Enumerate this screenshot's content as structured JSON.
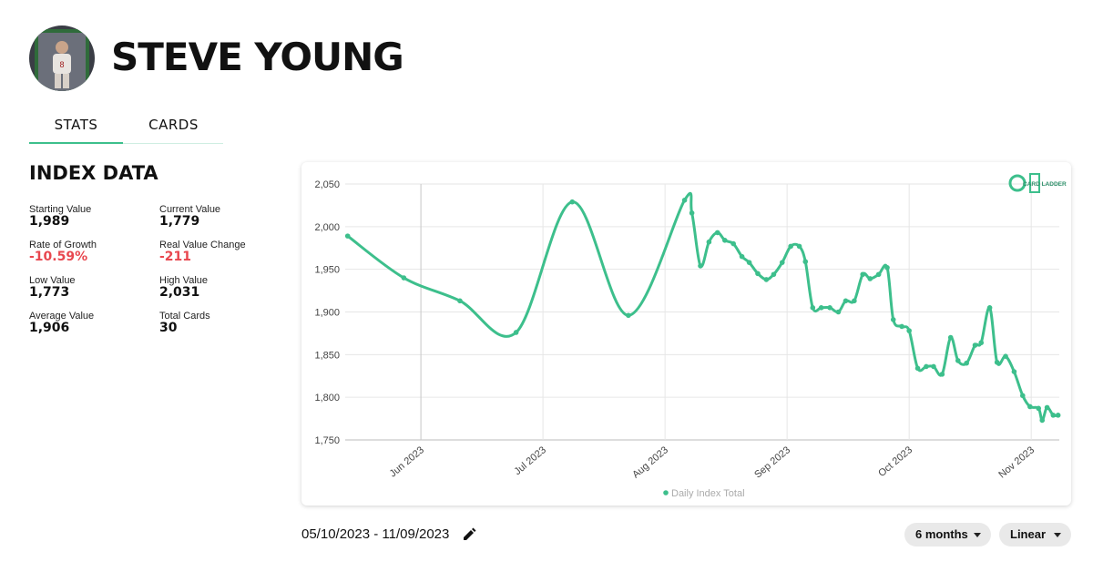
{
  "header": {
    "title": "STEVE YOUNG"
  },
  "tabs": [
    "STATS",
    "CARDS"
  ],
  "index_data": {
    "title": "INDEX DATA",
    "stats": [
      {
        "label": "Starting Value",
        "value": "1,989"
      },
      {
        "label": "Current Value",
        "value": "1,779"
      },
      {
        "label": "Rate of Growth",
        "value": "-10.59%"
      },
      {
        "label": "Real Value Change",
        "value": "-211"
      },
      {
        "label": "Low Value",
        "value": "1,773"
      },
      {
        "label": "High Value",
        "value": "2,031"
      },
      {
        "label": "Average Value",
        "value": "1,906"
      },
      {
        "label": "Total Cards",
        "value": "30"
      }
    ]
  },
  "chart_data": {
    "type": "line",
    "watermark": "CARD LADDER",
    "x": [
      5.4,
      5.86,
      6.32,
      6.78,
      7.24,
      7.7,
      8.16,
      8.22,
      8.29,
      8.36,
      8.43,
      8.49,
      8.56,
      8.63,
      8.69,
      8.76,
      8.83,
      8.89,
      8.96,
      9.03,
      9.1,
      9.15,
      9.21,
      9.28,
      9.35,
      9.42,
      9.48,
      9.55,
      9.62,
      9.68,
      9.75,
      9.82,
      9.87,
      9.94,
      10.0,
      10.07,
      10.14,
      10.2,
      10.27,
      10.34,
      10.4,
      10.47,
      10.54,
      10.59,
      10.66,
      10.72,
      10.79,
      10.86,
      10.93,
      10.99,
      11.06,
      11.09,
      11.13,
      11.18,
      11.22
    ],
    "series": [
      {
        "name": "Daily Index Total",
        "color": "#3dbf8c",
        "values": [
          1989,
          1940,
          1913,
          1876,
          2029,
          1896,
          2031,
          2016,
          1954,
          1982,
          1993,
          1984,
          1980,
          1965,
          1958,
          1945,
          1938,
          1944,
          1958,
          1977,
          1977,
          1959,
          1905,
          1905,
          1905,
          1900,
          1913,
          1913,
          1944,
          1939,
          1944,
          1952,
          1891,
          1883,
          1878,
          1834,
          1836,
          1836,
          1827,
          1870,
          1843,
          1840,
          1861,
          1864,
          1905,
          1841,
          1848,
          1830,
          1802,
          1789,
          1787,
          1773,
          1788,
          1779,
          1779
        ]
      }
    ],
    "xlim": [
      5.38,
      11.23
    ],
    "xticks": [
      {
        "value": 6,
        "label": "Jun 2023"
      },
      {
        "value": 7,
        "label": "Jul 2023"
      },
      {
        "value": 8,
        "label": "Aug 2023"
      },
      {
        "value": 9,
        "label": "Sep 2023"
      },
      {
        "value": 10,
        "label": "Oct 2023"
      },
      {
        "value": 11,
        "label": "Nov 2023"
      }
    ],
    "ylim": [
      1750,
      2050
    ],
    "yticks": [
      {
        "value": 1750,
        "label": "1,750"
      },
      {
        "value": 1800,
        "label": "1,800"
      },
      {
        "value": 1850,
        "label": "1,850"
      },
      {
        "value": 1900,
        "label": "1,900"
      },
      {
        "value": 1950,
        "label": "1,950"
      },
      {
        "value": 2000,
        "label": "2,000"
      },
      {
        "value": 2050,
        "label": "2,050"
      }
    ],
    "grid": true,
    "log_scale": false,
    "legend": "bottom"
  },
  "controls": {
    "date_range": "05/10/2023 - 11/09/2023",
    "period": "6 months",
    "scale": "Linear"
  }
}
